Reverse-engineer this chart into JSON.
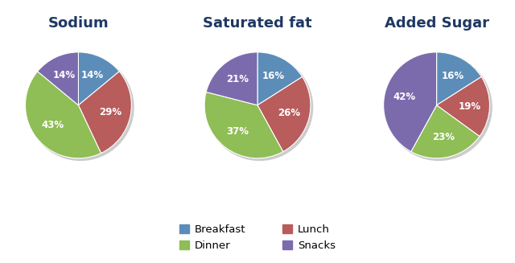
{
  "charts": [
    {
      "title": "Sodium",
      "values": [
        14,
        29,
        43,
        14
      ],
      "labels": [
        "Breakfast",
        "Lunch",
        "Dinner",
        "Snacks"
      ],
      "startangle": 90
    },
    {
      "title": "Saturated fat",
      "values": [
        16,
        26,
        37,
        21
      ],
      "labels": [
        "Breakfast",
        "Lunch",
        "Dinner",
        "Snacks"
      ],
      "startangle": 90
    },
    {
      "title": "Added Sugar",
      "values": [
        16,
        19,
        23,
        42
      ],
      "labels": [
        "Breakfast",
        "Lunch",
        "Dinner",
        "Snacks"
      ],
      "startangle": 90
    }
  ],
  "colors": {
    "Breakfast": "#5B8DB8",
    "Lunch": "#B85C5C",
    "Dinner": "#8FBD56",
    "Snacks": "#7B6BAD"
  },
  "legend_order": [
    "Breakfast",
    "Dinner",
    "Lunch",
    "Snacks"
  ],
  "text_color": "#FFFFFF",
  "background_color": "#FFFFFF",
  "label_fontsize": 8.5,
  "title_fontsize": 13,
  "title_color": "#1F3864"
}
